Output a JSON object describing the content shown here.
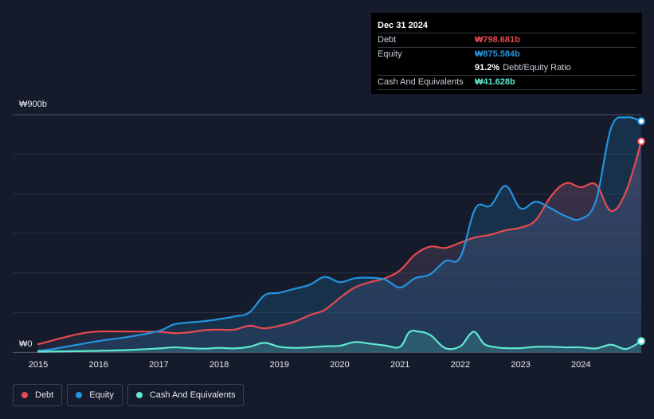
{
  "chart_data": {
    "type": "area",
    "title": "",
    "xlabel": "",
    "ylabel": "",
    "ylim": [
      0,
      900
    ],
    "y_tick_labels": {
      "top": "₩900b",
      "bottom": "₩0"
    },
    "x_tick_labels": [
      "2015",
      "2016",
      "2017",
      "2018",
      "2019",
      "2020",
      "2021",
      "2022",
      "2023",
      "2024"
    ],
    "x_tick_values": [
      2015,
      2016,
      2017,
      2018,
      2019,
      2020,
      2021,
      2022,
      2023,
      2024
    ],
    "xlim": [
      2015,
      2025
    ],
    "grid": true,
    "series": [
      {
        "name": "Debt",
        "color": "#e64a51",
        "x": [
          2015,
          2015.25,
          2015.5,
          2015.75,
          2016,
          2016.5,
          2017,
          2017.25,
          2017.5,
          2017.75,
          2018,
          2018.25,
          2018.5,
          2018.75,
          2019,
          2019.25,
          2019.5,
          2019.75,
          2020,
          2020.25,
          2020.5,
          2020.75,
          2021,
          2021.25,
          2021.5,
          2021.75,
          2022,
          2022.25,
          2022.5,
          2022.75,
          2023,
          2023.25,
          2023.5,
          2023.75,
          2024,
          2024.25,
          2024.5,
          2024.75,
          2025
        ],
        "values": [
          30,
          45,
          60,
          72,
          78,
          78,
          77,
          72,
          75,
          83,
          85,
          85,
          100,
          90,
          100,
          115,
          140,
          160,
          205,
          245,
          265,
          280,
          310,
          370,
          400,
          395,
          415,
          435,
          445,
          462,
          472,
          500,
          590,
          640,
          625,
          635,
          535,
          610,
          798.681
        ]
      },
      {
        "name": "Equity",
        "color": "#2394df",
        "x": [
          2015,
          2015.25,
          2015.5,
          2015.75,
          2016,
          2016.5,
          2017,
          2017.25,
          2017.5,
          2017.75,
          2018,
          2018.25,
          2018.5,
          2018.75,
          2019,
          2019.25,
          2019.5,
          2019.75,
          2020,
          2020.25,
          2020.5,
          2020.75,
          2021,
          2021.25,
          2021.5,
          2021.75,
          2022,
          2022.25,
          2022.5,
          2022.75,
          2023,
          2023.25,
          2023.5,
          2023.75,
          2024,
          2024.25,
          2024.5,
          2024.75,
          2025
        ],
        "values": [
          5,
          12,
          22,
          32,
          42,
          58,
          80,
          105,
          112,
          117,
          125,
          135,
          150,
          215,
          225,
          240,
          255,
          285,
          265,
          280,
          282,
          275,
          245,
          280,
          295,
          345,
          360,
          545,
          555,
          630,
          545,
          570,
          545,
          515,
          505,
          575,
          850,
          890,
          875.584
        ]
      },
      {
        "name": "Cash And Equivalents",
        "color": "#5ee8cf",
        "x": [
          2015,
          2015.5,
          2016,
          2016.5,
          2017,
          2017.25,
          2017.5,
          2017.75,
          2018,
          2018.25,
          2018.5,
          2018.75,
          2019,
          2019.25,
          2019.5,
          2019.75,
          2020,
          2020.25,
          2020.5,
          2020.75,
          2021,
          2021.15,
          2021.3,
          2021.5,
          2021.75,
          2022,
          2022.15,
          2022.25,
          2022.4,
          2022.6,
          2022.75,
          2023,
          2023.25,
          2023.5,
          2023.75,
          2024,
          2024.25,
          2024.5,
          2024.75,
          2025
        ],
        "values": [
          2,
          3,
          5,
          8,
          14,
          18,
          15,
          13,
          16,
          14,
          20,
          35,
          20,
          16,
          18,
          22,
          24,
          38,
          32,
          25,
          20,
          75,
          78,
          65,
          15,
          22,
          65,
          75,
          30,
          18,
          15,
          15,
          20,
          20,
          18,
          18,
          14,
          28,
          12,
          41.628
        ]
      }
    ]
  },
  "tooltip": {
    "date": "Dec 31 2024",
    "debt_label": "Debt",
    "debt_value": "₩798.681b",
    "equity_label": "Equity",
    "equity_value": "₩875.584b",
    "ratio_value": "91.2%",
    "ratio_label": "Debt/Equity Ratio",
    "cash_label": "Cash And Equivalents",
    "cash_value": "₩41.628b"
  },
  "legend": {
    "debt": "Debt",
    "equity": "Equity",
    "cash": "Cash And Equivalents"
  },
  "colors": {
    "debt": "#e64a51",
    "equity": "#2394df",
    "cash": "#5ee8cf",
    "background": "#151b2b"
  }
}
